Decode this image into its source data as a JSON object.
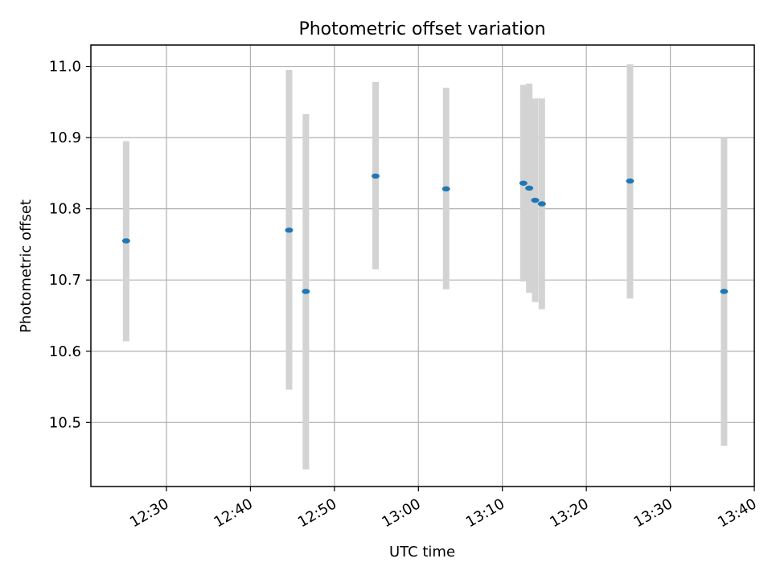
{
  "chart_data": {
    "type": "scatter",
    "title": "Photometric offset variation",
    "xlabel": "UTC time",
    "ylabel": "Photometric offset",
    "x_unit": "minutes of day (UTC)",
    "xlim": [
      "12:21",
      "13:40"
    ],
    "ylim": [
      10.41,
      11.03
    ],
    "x_ticks": [
      "12:30",
      "12:40",
      "12:50",
      "13:00",
      "13:10",
      "13:20",
      "13:30",
      "13:40"
    ],
    "y_ticks": [
      "10.5",
      "10.6",
      "10.7",
      "10.8",
      "10.9",
      "11.0"
    ],
    "grid": true,
    "colors": {
      "marker": "#1f77b4",
      "errorbar": "#d3d3d3",
      "grid": "#b0b0b0"
    },
    "points": [
      {
        "time": "12:25:12",
        "y": 10.755,
        "low": 10.614,
        "high": 10.895
      },
      {
        "time": "12:44:36",
        "y": 10.77,
        "low": 10.546,
        "high": 10.995
      },
      {
        "time": "12:46:36",
        "y": 10.684,
        "low": 10.434,
        "high": 10.933
      },
      {
        "time": "12:54:54",
        "y": 10.846,
        "low": 10.715,
        "high": 10.978
      },
      {
        "time": "13:03:18",
        "y": 10.828,
        "low": 10.687,
        "high": 10.97
      },
      {
        "time": "13:12:30",
        "y": 10.836,
        "low": 10.698,
        "high": 10.974
      },
      {
        "time": "13:13:12",
        "y": 10.829,
        "low": 10.682,
        "high": 10.976
      },
      {
        "time": "13:13:54",
        "y": 10.812,
        "low": 10.669,
        "high": 10.955
      },
      {
        "time": "13:14:42",
        "y": 10.807,
        "low": 10.659,
        "high": 10.955
      },
      {
        "time": "13:25:12",
        "y": 10.839,
        "low": 10.674,
        "high": 11.003
      },
      {
        "time": "13:36:24",
        "y": 10.684,
        "low": 10.467,
        "high": 10.9
      }
    ]
  }
}
